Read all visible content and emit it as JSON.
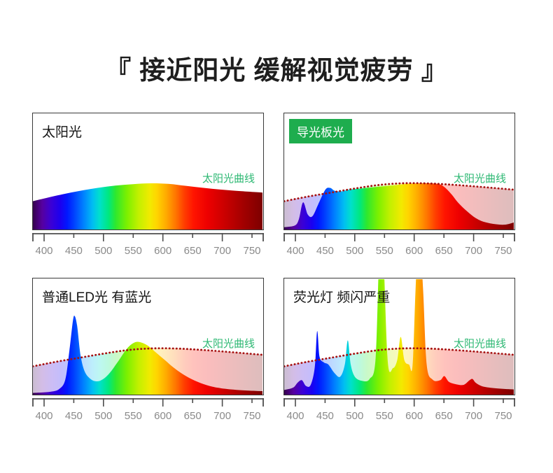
{
  "page": {
    "title": "『 接近阳光 缓解视觉疲劳 』"
  },
  "colors": {
    "badge_green": "#1ead4e",
    "curve_label_green": "#2db873",
    "dotted_sun_curve_red": "#a61010",
    "axis_line_gray": "#4d4d4d",
    "axis_label_gray": "#8a8a8a",
    "chart_border": "#3a3a3a",
    "sun_fill_opacity": 0.26,
    "spectrum_stops": [
      [
        "0%",
        "#35004d"
      ],
      [
        "4%",
        "#56009f"
      ],
      [
        "8%",
        "#3b00d6"
      ],
      [
        "12%",
        "#1b00f0"
      ],
      [
        "15%",
        "#0018ff"
      ],
      [
        "18%",
        "#0042ff"
      ],
      [
        "22%",
        "#0080ff"
      ],
      [
        "26%",
        "#00bdf2"
      ],
      [
        "29%",
        "#00e0cc"
      ],
      [
        "33%",
        "#00e87d"
      ],
      [
        "36%",
        "#2ee82e"
      ],
      [
        "41%",
        "#7df000"
      ],
      [
        "46%",
        "#c2f000"
      ],
      [
        "51%",
        "#f2ea00"
      ],
      [
        "54%",
        "#ffd400"
      ],
      [
        "58%",
        "#ffab00"
      ],
      [
        "62%",
        "#ff7800"
      ],
      [
        "66%",
        "#ff3d00"
      ],
      [
        "70%",
        "#ff1400"
      ],
      [
        "76%",
        "#ee0000"
      ],
      [
        "84%",
        "#c80000"
      ],
      [
        "92%",
        "#a10000"
      ],
      [
        "100%",
        "#7d0000"
      ]
    ]
  },
  "axis": {
    "tick_labels": [
      "400",
      "450",
      "500",
      "550",
      "600",
      "650",
      "700",
      "750"
    ],
    "tick_wavelengths": [
      400,
      450,
      500,
      550,
      600,
      650,
      700,
      750
    ],
    "wavelength_min": 380,
    "wavelength_max": 770
  },
  "sun_reference": {
    "label": "太阳光曲线",
    "x": [
      380,
      420,
      460,
      500,
      540,
      580,
      620,
      660,
      700,
      735,
      770
    ],
    "y": [
      0.245,
      0.285,
      0.32,
      0.355,
      0.385,
      0.4,
      0.4,
      0.39,
      0.375,
      0.36,
      0.345
    ]
  },
  "chart_data": [
    {
      "type": "area",
      "title": "太阳光",
      "title_style": "plain",
      "curve_label": "太阳光曲线",
      "sun_reference_overlay": false,
      "xlim": [
        380,
        770
      ],
      "ylim": [
        0,
        1
      ],
      "xtick_labels": [
        "400",
        "450",
        "500",
        "550",
        "600",
        "650",
        "700",
        "750"
      ],
      "x": [
        380,
        400,
        430,
        460,
        490,
        520,
        550,
        580,
        610,
        640,
        670,
        700,
        730,
        770
      ],
      "y": [
        0.245,
        0.27,
        0.305,
        0.335,
        0.36,
        0.38,
        0.393,
        0.4,
        0.395,
        0.378,
        0.36,
        0.345,
        0.333,
        0.32
      ]
    },
    {
      "type": "area",
      "title": "导光板光",
      "title_style": "badge",
      "curve_label": "太阳光曲线",
      "sun_reference_overlay": true,
      "xlim": [
        380,
        770
      ],
      "ylim": [
        0,
        1
      ],
      "xtick_labels": [
        "400",
        "450",
        "500",
        "550",
        "600",
        "650",
        "700",
        "750"
      ],
      "x": [
        380,
        398,
        405,
        412,
        420,
        428,
        438,
        450,
        458,
        466,
        478,
        490,
        510,
        530,
        550,
        570,
        590,
        610,
        630,
        645,
        655,
        665,
        675,
        690,
        705,
        720,
        740,
        756,
        770
      ],
      "y": [
        0.02,
        0.035,
        0.09,
        0.235,
        0.13,
        0.115,
        0.22,
        0.345,
        0.36,
        0.335,
        0.33,
        0.345,
        0.355,
        0.365,
        0.375,
        0.385,
        0.395,
        0.4,
        0.4,
        0.39,
        0.355,
        0.3,
        0.235,
        0.16,
        0.1,
        0.065,
        0.045,
        0.042,
        0.06
      ]
    },
    {
      "type": "area",
      "title": "普通LED光 有蓝光",
      "title_style": "plain",
      "curve_label": "太阳光曲线",
      "sun_reference_overlay": true,
      "xlim": [
        380,
        770
      ],
      "ylim": [
        0,
        1
      ],
      "xtick_labels": [
        "400",
        "450",
        "500",
        "550",
        "600",
        "650",
        "700",
        "750"
      ],
      "x": [
        380,
        410,
        425,
        435,
        442,
        448,
        451,
        455,
        461,
        468,
        478,
        488,
        498,
        510,
        525,
        540,
        552,
        562,
        575,
        590,
        605,
        620,
        640,
        660,
        680,
        700,
        730,
        770
      ],
      "y": [
        0.015,
        0.025,
        0.05,
        0.13,
        0.38,
        0.64,
        0.68,
        0.6,
        0.34,
        0.2,
        0.135,
        0.115,
        0.13,
        0.185,
        0.29,
        0.4,
        0.45,
        0.455,
        0.425,
        0.36,
        0.295,
        0.23,
        0.16,
        0.11,
        0.075,
        0.055,
        0.04,
        0.03
      ]
    },
    {
      "type": "area",
      "title": "荧光灯 频闪严重",
      "title_style": "plain",
      "curve_label": "太阳光曲线",
      "sun_reference_overlay": true,
      "xlim": [
        380,
        770
      ],
      "ylim": [
        0,
        1
      ],
      "xtick_labels": [
        "400",
        "450",
        "500",
        "550",
        "600",
        "650",
        "700",
        "750"
      ],
      "x": [
        380,
        395,
        403,
        410,
        417,
        425,
        432,
        436,
        440,
        447,
        455,
        465,
        475,
        483,
        488,
        493,
        500,
        512,
        525,
        535,
        541,
        545,
        549,
        556,
        565,
        572,
        578,
        584,
        592,
        598,
        603,
        607,
        611,
        616,
        622,
        632,
        645,
        652,
        660,
        672,
        685,
        695,
        700,
        706,
        718,
        740,
        770
      ],
      "y": [
        0.04,
        0.06,
        0.105,
        0.125,
        0.075,
        0.085,
        0.24,
        0.55,
        0.33,
        0.28,
        0.26,
        0.19,
        0.155,
        0.26,
        0.47,
        0.26,
        0.155,
        0.12,
        0.135,
        0.3,
        1.15,
        1.32,
        1.15,
        0.28,
        0.23,
        0.3,
        0.5,
        0.3,
        0.26,
        0.25,
        0.9,
        1.3,
        1.32,
        0.9,
        0.26,
        0.13,
        0.125,
        0.16,
        0.11,
        0.09,
        0.085,
        0.125,
        0.135,
        0.1,
        0.07,
        0.055,
        0.045
      ]
    }
  ]
}
